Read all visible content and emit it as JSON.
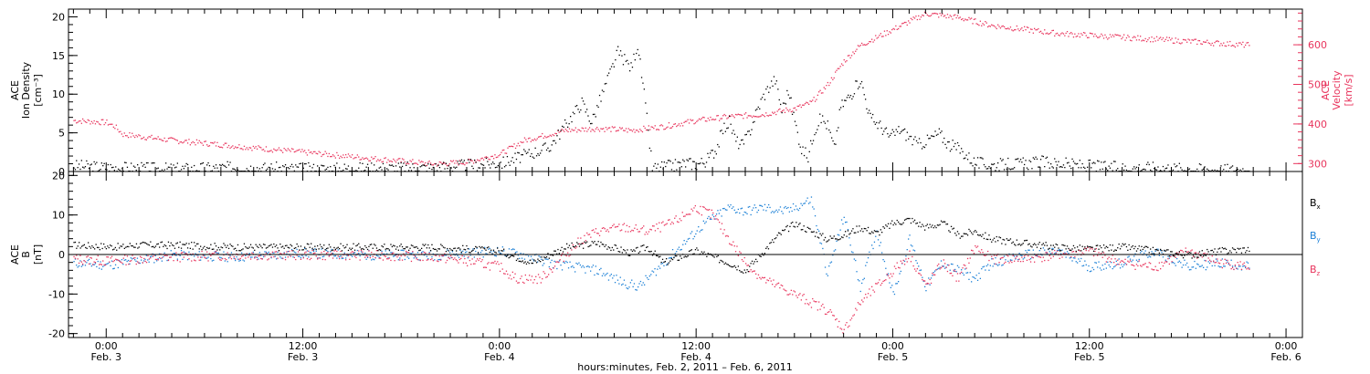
{
  "chart_data": [
    {
      "type": "scatter",
      "ylabel_lines": [
        "ACE",
        "Ion Density",
        "[cm⁻³]"
      ],
      "y2label_lines": [
        "ACE",
        "Velocity",
        "[km/s]"
      ],
      "ylim": [
        0,
        21
      ],
      "y2lim": [
        280,
        690
      ],
      "yticks": [
        0,
        5,
        10,
        15,
        20
      ],
      "y2ticks": [
        300,
        400,
        500,
        600
      ],
      "series": [
        {
          "color": "#000000",
          "axis": "left",
          "x": [
            -2.0,
            0.0,
            4.0,
            8.0,
            12.0,
            16.0,
            20.0,
            23.0,
            24.2,
            25.0,
            26.0,
            27.0,
            27.8,
            28.3,
            29.0,
            29.6,
            30.4,
            31.2,
            32.0,
            32.4,
            32.8,
            33.3,
            33.8,
            34.4,
            35.0,
            35.4,
            36.0,
            36.6,
            37.2,
            37.6,
            38.0,
            38.4,
            38.8,
            39.2,
            39.6,
            40.0,
            40.4,
            40.8,
            41.2,
            41.6,
            42.0,
            42.4,
            42.8,
            43.2,
            43.6,
            44.0,
            44.4,
            44.8,
            45.4,
            46.0,
            46.6,
            47.2,
            47.8,
            48.4,
            49.0,
            49.5,
            50.0,
            50.8,
            51.4,
            52.0,
            53.0,
            54.0,
            55.0,
            56.0,
            57.0,
            58.0,
            60.0,
            62.0,
            64.0,
            66.0,
            68.0,
            69.8
          ],
          "y": [
            0.8,
            0.6,
            0.4,
            0.6,
            0.4,
            0.5,
            0.6,
            1.0,
            1.2,
            1.8,
            2.5,
            3.2,
            5.5,
            7.0,
            9.0,
            6.5,
            11.0,
            15.5,
            13.5,
            16.5,
            10.0,
            0.5,
            0.6,
            0.8,
            1.0,
            1.2,
            1.0,
            1.5,
            3.0,
            5.5,
            6.5,
            4.0,
            3.5,
            5.0,
            7.5,
            9.5,
            11.0,
            12.0,
            8.0,
            10.5,
            6.5,
            3.0,
            2.0,
            5.5,
            7.0,
            6.0,
            3.0,
            8.5,
            10.0,
            12.0,
            7.0,
            6.0,
            4.5,
            5.5,
            4.5,
            3.5,
            4.0,
            5.0,
            3.5,
            3.0,
            1.2,
            0.9,
            1.0,
            1.1,
            1.3,
            1.1,
            0.8,
            0.5,
            0.6,
            0.4,
            0.3,
            0.3
          ]
        },
        {
          "color": "#e8345c",
          "axis": "right",
          "x": [
            -2.0,
            0.0,
            0.5,
            1.0,
            4.0,
            8.0,
            12.0,
            16.0,
            20.0,
            22.0,
            24.0,
            25.5,
            26.5,
            28.0,
            30.0,
            32.0,
            34.0,
            36.0,
            38.0,
            40.0,
            42.0,
            43.0,
            44.0,
            45.0,
            46.0,
            47.0,
            48.0,
            49.0,
            50.0,
            52.0,
            54.0,
            56.0,
            58.0,
            60.0,
            62.0,
            64.0,
            66.0,
            68.0,
            69.8
          ],
          "y": [
            410,
            405,
            395,
            375,
            360,
            345,
            330,
            315,
            300,
            305,
            325,
            360,
            370,
            385,
            390,
            385,
            395,
            410,
            420,
            425,
            440,
            455,
            500,
            560,
            600,
            620,
            640,
            660,
            680,
            670,
            650,
            640,
            630,
            625,
            620,
            615,
            610,
            605,
            600
          ]
        }
      ]
    },
    {
      "type": "scatter",
      "ylabel_lines": [
        "ACE",
        "B",
        "[nT]"
      ],
      "ylim": [
        -21,
        21
      ],
      "yticks": [
        -20,
        -10,
        0,
        10,
        20
      ],
      "zero_line": true,
      "series": [
        {
          "name": "B",
          "sub": "x",
          "color": "#000000",
          "x": [
            -2.0,
            1.0,
            1.5,
            4.0,
            8.0,
            12.0,
            16.0,
            20.0,
            24.0,
            26.0,
            28.0,
            30.0,
            32.0,
            33.0,
            34.0,
            36.0,
            38.0,
            39.0,
            40.0,
            41.0,
            42.0,
            43.0,
            44.0,
            45.0,
            46.0,
            47.0,
            48.0,
            49.0,
            50.0,
            51.0,
            52.0,
            53.0,
            54.0,
            56.0,
            58.0,
            60.0,
            62.0,
            64.0,
            66.0,
            68.0,
            69.8
          ],
          "y": [
            2.5,
            2.0,
            2.5,
            2.5,
            2.0,
            2.0,
            2.0,
            2.0,
            1.0,
            -2.0,
            2.0,
            3.0,
            0.5,
            2.0,
            -2.0,
            1.0,
            -2.0,
            -4.0,
            0.5,
            5.0,
            8.0,
            6.0,
            4.0,
            5.0,
            7.0,
            5.5,
            8.0,
            9.0,
            7.0,
            8.0,
            5.0,
            6.0,
            4.0,
            3.0,
            2.0,
            1.5,
            2.0,
            1.0,
            0.0,
            1.0,
            1.5
          ]
        },
        {
          "name": "B",
          "sub": "y",
          "color": "#1a7fd6",
          "x": [
            -2.0,
            0.0,
            1.0,
            4.0,
            8.0,
            12.0,
            16.0,
            20.0,
            24.0,
            25.5,
            27.0,
            28.5,
            30.0,
            31.5,
            32.5,
            34.0,
            35.0,
            36.5,
            38.0,
            39.0,
            40.0,
            41.5,
            43.0,
            44.0,
            45.0,
            46.0,
            47.0,
            48.0,
            49.0,
            50.0,
            51.0,
            52.0,
            53.0,
            54.0,
            56.0,
            58.0,
            60.0,
            62.0,
            64.0,
            66.0,
            68.0,
            69.8
          ],
          "y": [
            -2.0,
            -2.5,
            -2.0,
            0.0,
            -0.5,
            0.5,
            0.0,
            0.0,
            1.0,
            0.0,
            -2.0,
            -3.0,
            -4.0,
            -7.0,
            -8.0,
            -2.0,
            2.0,
            8.0,
            12.0,
            11.0,
            12.0,
            11.0,
            14.0,
            -5.0,
            10.0,
            -8.0,
            6.0,
            -10.0,
            4.0,
            -8.0,
            -2.0,
            -4.0,
            -6.0,
            -2.0,
            0.0,
            1.0,
            -3.0,
            -2.0,
            1.0,
            -3.0,
            -2.0,
            -3.0
          ]
        },
        {
          "name": "B",
          "sub": "z",
          "color": "#e8345c",
          "x": [
            -2.0,
            0.0,
            4.0,
            8.0,
            12.0,
            16.0,
            20.0,
            22.0,
            24.0,
            25.0,
            26.5,
            27.5,
            29.0,
            30.0,
            31.5,
            33.0,
            34.5,
            36.0,
            37.0,
            38.0,
            39.0,
            40.0,
            41.0,
            42.0,
            43.0,
            44.0,
            45.0,
            46.0,
            47.0,
            48.0,
            49.0,
            50.0,
            51.0,
            52.0,
            53.0,
            54.0,
            56.0,
            58.0,
            60.0,
            62.0,
            64.0,
            66.0,
            68.0,
            69.8
          ],
          "y": [
            -1.0,
            -1.5,
            -0.5,
            0.0,
            0.0,
            0.0,
            -0.5,
            -1.5,
            -3.0,
            -6.0,
            -6.0,
            -2.0,
            4.0,
            6.0,
            7.0,
            6.0,
            8.0,
            12.0,
            10.0,
            4.0,
            -2.0,
            -6.0,
            -8.0,
            -10.0,
            -12.0,
            -14.0,
            -19.0,
            -12.0,
            -8.0,
            -4.0,
            0.0,
            -8.0,
            -2.0,
            -6.0,
            2.0,
            -1.0,
            -1.0,
            0.0,
            1.0,
            -2.0,
            -3.0,
            1.0,
            -2.0,
            -3.0
          ]
        }
      ]
    }
  ],
  "x_axis": {
    "xlim": [
      -2.3,
      73.0
    ],
    "ticks": [
      {
        "x": 0,
        "time": "0:00",
        "date": "Feb. 3"
      },
      {
        "x": 12,
        "time": "12:00",
        "date": "Feb. 3"
      },
      {
        "x": 24,
        "time": "0:00",
        "date": "Feb. 4"
      },
      {
        "x": 36,
        "time": "12:00",
        "date": "Feb. 4"
      },
      {
        "x": 48,
        "time": "0:00",
        "date": "Feb. 5"
      },
      {
        "x": 60,
        "time": "12:00",
        "date": "Feb. 5"
      },
      {
        "x": 72,
        "time": "0:00",
        "date": "Feb. 6"
      }
    ],
    "label": "hours:minutes, Feb. 2, 2011 – Feb. 6, 2011"
  }
}
